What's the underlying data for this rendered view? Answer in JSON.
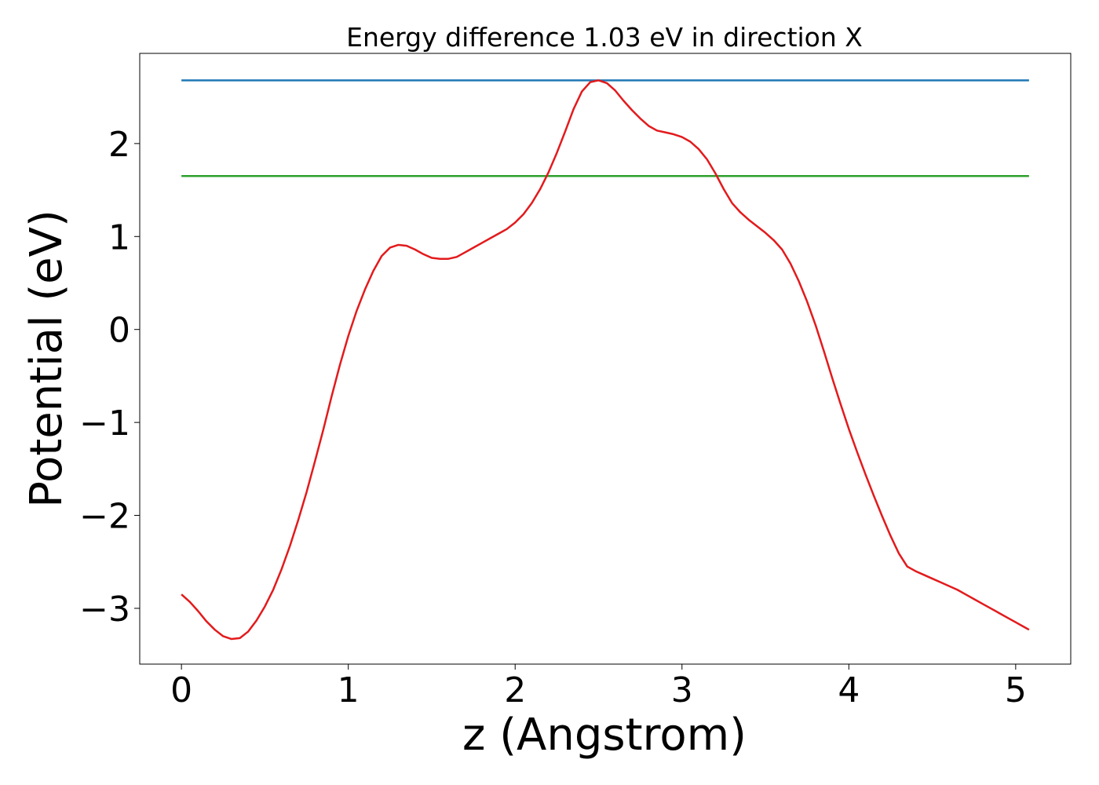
{
  "chart_data": {
    "type": "line",
    "title": "Energy difference 1.03 eV in direction X",
    "xlabel": "z (Angstrom)",
    "ylabel": "Potential (eV)",
    "xlim": [
      -0.25,
      5.33
    ],
    "ylim": [
      -3.6,
      2.97
    ],
    "xticks": [
      0,
      1,
      2,
      3,
      4,
      5
    ],
    "xtick_labels": [
      "0",
      "1",
      "2",
      "3",
      "4",
      "5"
    ],
    "yticks": [
      -3,
      -2,
      -1,
      0,
      1,
      2
    ],
    "ytick_labels": [
      "−3",
      "−2",
      "−1",
      "0",
      "1",
      "2"
    ],
    "grid": false,
    "legend": false,
    "series": [
      {
        "color": "#1f77b4",
        "x": [
          0,
          5.08
        ],
        "y": [
          2.68,
          2.68
        ]
      },
      {
        "color": "#2ca02c",
        "x": [
          0,
          5.08
        ],
        "y": [
          1.65,
          1.65
        ]
      },
      {
        "color": "#e31a1c",
        "x": [
          0,
          0.05,
          0.1,
          0.15,
          0.2,
          0.25,
          0.3,
          0.35,
          0.4,
          0.45,
          0.5,
          0.55,
          0.6,
          0.65,
          0.7,
          0.75,
          0.8,
          0.85,
          0.9,
          0.95,
          1.0,
          1.05,
          1.1,
          1.15,
          1.2,
          1.25,
          1.3,
          1.35,
          1.4,
          1.45,
          1.5,
          1.55,
          1.6,
          1.65,
          1.7,
          1.75,
          1.8,
          1.85,
          1.9,
          1.95,
          2.0,
          2.05,
          2.1,
          2.15,
          2.2,
          2.25,
          2.3,
          2.35,
          2.4,
          2.45,
          2.5,
          2.55,
          2.6,
          2.65,
          2.7,
          2.75,
          2.8,
          2.85,
          2.9,
          2.95,
          3.0,
          3.05,
          3.1,
          3.15,
          3.2,
          3.25,
          3.3,
          3.35,
          3.4,
          3.45,
          3.5,
          3.55,
          3.6,
          3.65,
          3.7,
          3.75,
          3.8,
          3.85,
          3.9,
          3.95,
          4.0,
          4.05,
          4.1,
          4.15,
          4.2,
          4.25,
          4.3,
          4.35,
          4.4,
          4.45,
          4.5,
          4.55,
          4.6,
          4.65,
          4.7,
          4.75,
          4.8,
          4.85,
          4.9,
          4.95,
          5.0,
          5.05,
          5.08
        ],
        "y": [
          -2.85,
          -2.93,
          -3.03,
          -3.14,
          -3.23,
          -3.3,
          -3.33,
          -3.32,
          -3.25,
          -3.13,
          -2.98,
          -2.8,
          -2.58,
          -2.33,
          -2.05,
          -1.75,
          -1.42,
          -1.08,
          -0.72,
          -0.38,
          -0.07,
          0.2,
          0.43,
          0.63,
          0.79,
          0.88,
          0.91,
          0.9,
          0.86,
          0.81,
          0.77,
          0.76,
          0.76,
          0.78,
          0.83,
          0.88,
          0.93,
          0.98,
          1.03,
          1.08,
          1.15,
          1.24,
          1.36,
          1.51,
          1.69,
          1.9,
          2.13,
          2.37,
          2.56,
          2.66,
          2.68,
          2.65,
          2.57,
          2.46,
          2.36,
          2.27,
          2.19,
          2.14,
          2.12,
          2.1,
          2.07,
          2.02,
          1.94,
          1.83,
          1.68,
          1.51,
          1.36,
          1.26,
          1.18,
          1.11,
          1.04,
          0.96,
          0.86,
          0.71,
          0.52,
          0.3,
          0.05,
          -0.23,
          -0.52,
          -0.8,
          -1.07,
          -1.32,
          -1.56,
          -1.79,
          -2.01,
          -2.22,
          -2.41,
          -2.55,
          -2.6,
          -2.64,
          -2.68,
          -2.72,
          -2.76,
          -2.8,
          -2.85,
          -2.9,
          -2.95,
          -3.0,
          -3.05,
          -3.1,
          -3.15,
          -3.2,
          -3.23
        ]
      }
    ]
  }
}
